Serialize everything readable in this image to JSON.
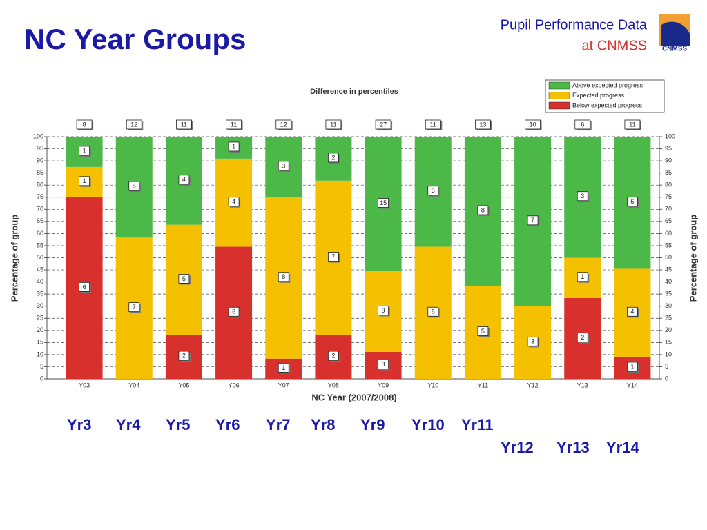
{
  "header": {
    "title": "NC Year Groups",
    "subtitle_line1": "Pupil Performance Data",
    "subtitle_line2": "at CNMSS",
    "logo_text": "CNMSS"
  },
  "chart_data": {
    "type": "bar",
    "stacked_percent": true,
    "title": "Difference in percentiles",
    "x_label": "NC Year (2007/2008)",
    "y_label": "Percentage of group",
    "y2_label": "Percentage of group",
    "categories": [
      "Y03",
      "Y04",
      "Y05",
      "Y06",
      "Y07",
      "Y08",
      "Y09",
      "Y10",
      "Y11",
      "Y12",
      "Y13",
      "Y14"
    ],
    "totals": [
      8,
      12,
      11,
      11,
      12,
      11,
      27,
      11,
      13,
      10,
      6,
      11
    ],
    "series": [
      {
        "name": "Below expected progress",
        "color": "#d8302c",
        "values": [
          6,
          0,
          2,
          6,
          1,
          2,
          3,
          0,
          0,
          0,
          2,
          1
        ]
      },
      {
        "name": "Expected progress",
        "color": "#f5c000",
        "values": [
          1,
          7,
          5,
          4,
          8,
          7,
          9,
          6,
          5,
          3,
          1,
          4
        ]
      },
      {
        "name": "Above expected progress",
        "color": "#4cb848",
        "values": [
          1,
          5,
          4,
          1,
          3,
          2,
          15,
          5,
          8,
          7,
          3,
          6
        ]
      }
    ],
    "ylim": [
      0,
      100
    ],
    "yticks": [
      0,
      5,
      10,
      15,
      20,
      25,
      30,
      35,
      40,
      45,
      50,
      55,
      60,
      65,
      70,
      75,
      80,
      85,
      90,
      95,
      100
    ],
    "grid": true,
    "legend": "upper right"
  },
  "year_labels": [
    "Yr3",
    "Yr4",
    "Yr5",
    "Yr6",
    "Yr7",
    "Yr8",
    "Yr9",
    "Yr10",
    "Yr11",
    "Yr12",
    "Yr13",
    "Yr14"
  ]
}
